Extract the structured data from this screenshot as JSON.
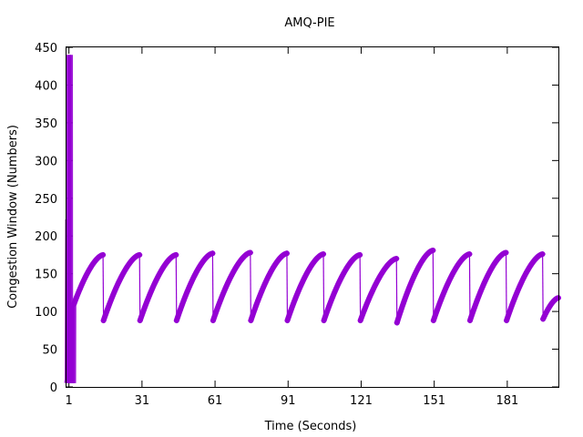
{
  "chart_data": {
    "type": "line",
    "title": "AMQ-PIE",
    "xlabel": "Time (Seconds)",
    "ylabel": "Congestion Window (Numbers)",
    "xlim": [
      0,
      202
    ],
    "ylim": [
      0,
      450
    ],
    "xticks": [
      1,
      31,
      61,
      91,
      121,
      151,
      181
    ],
    "yticks": [
      0,
      50,
      100,
      150,
      200,
      250,
      300,
      350,
      400,
      450
    ],
    "grid": false,
    "legend": "none",
    "series": [
      {
        "color": "#9400d3",
        "marker": "plus",
        "startup": {
          "x": [
            0.0,
            0.2,
            0.4,
            0.6,
            0.7,
            0.8,
            0.9,
            1.0,
            1.1,
            1.2,
            1.3,
            1.4,
            1.5,
            1.6,
            1.7,
            1.8,
            1.9,
            2.0,
            2.1,
            2.2,
            2.3,
            2.4,
            2.5,
            2.6,
            2.7,
            2.8,
            2.9,
            3.0,
            3.1
          ],
          "y": [
            5,
            10,
            222,
            5,
            220,
            440,
            5,
            440,
            5,
            440,
            230,
            5,
            440,
            5,
            440,
            5,
            105,
            5,
            108,
            5,
            110,
            5,
            106,
            5,
            108,
            5,
            110,
            5,
            110
          ]
        },
        "sawtooth": {
          "peaks": [
            {
              "x": 15.0,
              "y": 175
            },
            {
              "x": 30.0,
              "y": 175
            },
            {
              "x": 45.0,
              "y": 175
            },
            {
              "x": 60.0,
              "y": 177
            },
            {
              "x": 75.5,
              "y": 178
            },
            {
              "x": 90.5,
              "y": 177
            },
            {
              "x": 105.5,
              "y": 176
            },
            {
              "x": 120.5,
              "y": 175
            },
            {
              "x": 135.5,
              "y": 170
            },
            {
              "x": 150.5,
              "y": 181
            },
            {
              "x": 165.5,
              "y": 176
            },
            {
              "x": 180.5,
              "y": 178
            },
            {
              "x": 195.5,
              "y": 176
            }
          ],
          "troughs": [
            {
              "x": 3.1,
              "y": 110
            },
            {
              "x": 15.2,
              "y": 88
            },
            {
              "x": 30.2,
              "y": 88
            },
            {
              "x": 45.2,
              "y": 88
            },
            {
              "x": 60.2,
              "y": 88
            },
            {
              "x": 75.7,
              "y": 88
            },
            {
              "x": 90.7,
              "y": 88
            },
            {
              "x": 105.7,
              "y": 88
            },
            {
              "x": 120.7,
              "y": 88
            },
            {
              "x": 135.7,
              "y": 85
            },
            {
              "x": 150.7,
              "y": 88
            },
            {
              "x": 165.7,
              "y": 88
            },
            {
              "x": 180.7,
              "y": 88
            },
            {
              "x": 195.7,
              "y": 90
            }
          ],
          "end": {
            "x": 202,
            "y": 118
          }
        }
      }
    ]
  }
}
